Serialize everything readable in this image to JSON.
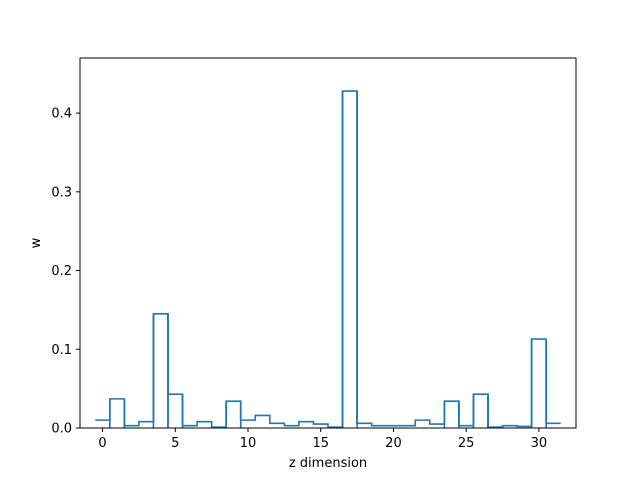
{
  "chart_data": {
    "type": "line",
    "style": "step",
    "title": "",
    "xlabel": "z dimension",
    "ylabel": "w",
    "xlim": [
      -1.55,
      32.55
    ],
    "ylim": [
      0,
      0.47
    ],
    "grid": false,
    "x_ticks": [
      0,
      5,
      10,
      15,
      20,
      25,
      30
    ],
    "y_ticks": [
      0.0,
      0.1,
      0.2,
      0.3,
      0.4
    ],
    "series_color": "#1f77b4",
    "x": [
      0,
      1,
      2,
      3,
      4,
      5,
      6,
      7,
      8,
      9,
      10,
      11,
      12,
      13,
      14,
      15,
      16,
      17,
      18,
      19,
      20,
      21,
      22,
      23,
      24,
      25,
      26,
      27,
      28,
      29,
      30,
      31
    ],
    "values": [
      0.01,
      0.037,
      0.003,
      0.008,
      0.145,
      0.043,
      0.003,
      0.008,
      0.001,
      0.034,
      0.01,
      0.016,
      0.006,
      0.003,
      0.008,
      0.005,
      0.001,
      0.428,
      0.006,
      0.003,
      0.003,
      0.003,
      0.01,
      0.005,
      0.034,
      0.003,
      0.043,
      0.001,
      0.003,
      0.002,
      0.113,
      0.006
    ]
  }
}
